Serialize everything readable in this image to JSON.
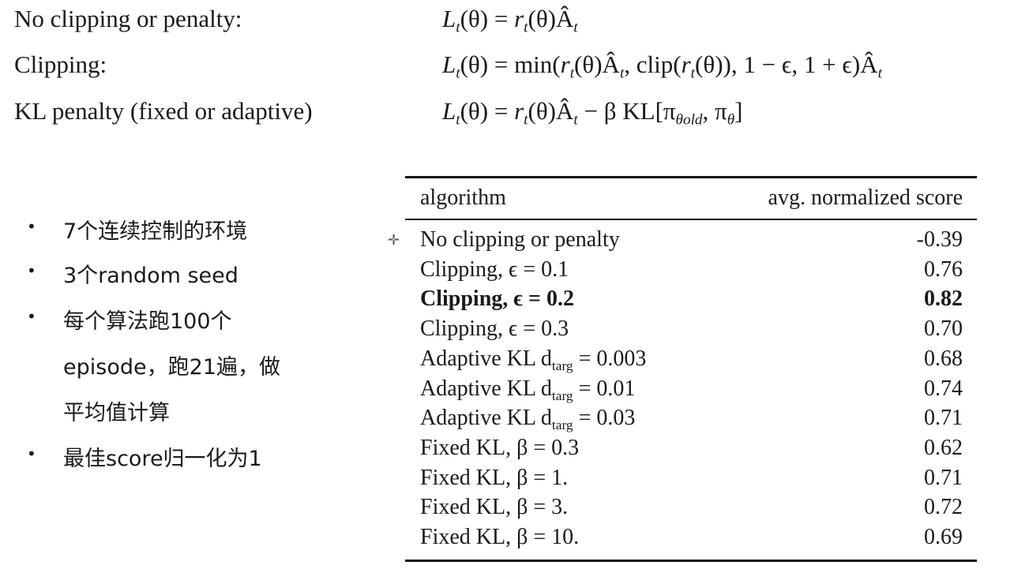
{
  "formulas": [
    {
      "label": "No clipping or penalty:",
      "expr": [
        {
          "t": "L",
          "i": 1
        },
        {
          "sub": "t",
          "i": 1
        },
        {
          "t": "(θ) = "
        },
        {
          "t": "r",
          "i": 1
        },
        {
          "sub": "t",
          "i": 1
        },
        {
          "t": "(θ)Â"
        },
        {
          "sub": "t",
          "i": 1
        }
      ]
    },
    {
      "label": "Clipping:",
      "expr": [
        {
          "t": "L",
          "i": 1
        },
        {
          "sub": "t",
          "i": 1
        },
        {
          "t": "(θ) = min("
        },
        {
          "t": "r",
          "i": 1
        },
        {
          "sub": "t",
          "i": 1
        },
        {
          "t": "(θ)Â"
        },
        {
          "sub": "t",
          "i": 1
        },
        {
          "t": ", clip("
        },
        {
          "t": "r",
          "i": 1
        },
        {
          "sub": "t",
          "i": 1
        },
        {
          "t": "(θ)), 1 − ϵ, 1 + ϵ)Â"
        },
        {
          "sub": "t",
          "i": 1
        }
      ]
    },
    {
      "label": "KL penalty (fixed or adaptive)",
      "expr": [
        {
          "t": "L",
          "i": 1
        },
        {
          "sub": "t",
          "i": 1
        },
        {
          "t": "(θ) = "
        },
        {
          "t": "r",
          "i": 1
        },
        {
          "sub": "t",
          "i": 1
        },
        {
          "t": "(θ)Â"
        },
        {
          "sub": "t",
          "i": 1
        },
        {
          "t": " − β KL[π"
        },
        {
          "sub": "θold",
          "i": 1
        },
        {
          "t": ", π"
        },
        {
          "sub": "θ",
          "i": 1
        },
        {
          "t": "]"
        }
      ]
    }
  ],
  "bullets": [
    {
      "text": "7个连续控制的环境"
    },
    {
      "text": "3个random seed"
    },
    {
      "text": "每个算法跑100个"
    },
    {
      "text": "episode，跑21遍，做",
      "cont": true
    },
    {
      "text": "平均值计算",
      "cont": true
    },
    {
      "text": "最佳score归一化为1"
    }
  ],
  "table": {
    "headers": [
      "algorithm",
      "avg. normalized score"
    ],
    "rows": [
      {
        "label": "No clipping or penalty",
        "sub": "",
        "rest": "",
        "value": "-0.39"
      },
      {
        "label": "Clipping, ϵ = 0.1",
        "sub": "",
        "rest": "",
        "value": "0.76"
      },
      {
        "label": "Clipping, ϵ = 0.2",
        "sub": "",
        "rest": "",
        "value": "0.82",
        "bold": true
      },
      {
        "label": "Clipping, ϵ = 0.3",
        "sub": "",
        "rest": "",
        "value": "0.70"
      },
      {
        "label": "Adaptive KL d",
        "sub": "targ",
        "rest": " = 0.003",
        "value": "0.68"
      },
      {
        "label": "Adaptive KL d",
        "sub": "targ",
        "rest": " = 0.01",
        "value": "0.74"
      },
      {
        "label": "Adaptive KL d",
        "sub": "targ",
        "rest": " = 0.03",
        "value": "0.71"
      },
      {
        "label": "Fixed KL, β = 0.3",
        "sub": "",
        "rest": "",
        "value": "0.62"
      },
      {
        "label": "Fixed KL, β = 1.",
        "sub": "",
        "rest": "",
        "value": "0.71"
      },
      {
        "label": "Fixed KL, β = 3.",
        "sub": "",
        "rest": "",
        "value": "0.72"
      },
      {
        "label": "Fixed KL, β = 10.",
        "sub": "",
        "rest": "",
        "value": "0.69"
      }
    ]
  },
  "cursor_icon": "crosshair-move-icon"
}
